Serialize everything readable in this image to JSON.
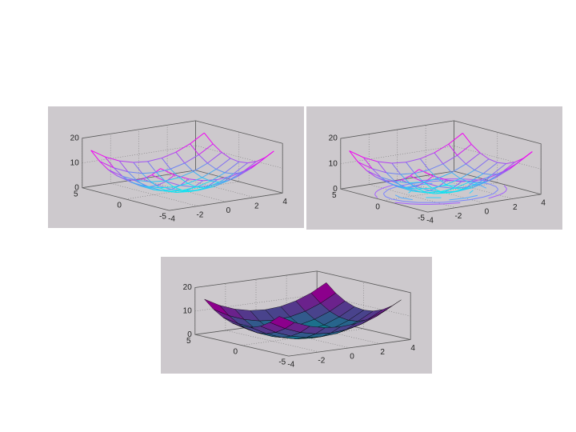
{
  "chart_data": [
    {
      "type": "mesh",
      "view": [
        -37.5,
        30
      ],
      "colormap": [
        "#00ffff",
        "#ff00ff"
      ],
      "x": [
        -4,
        -3,
        -2,
        -1,
        0,
        1,
        2,
        3,
        4
      ],
      "y": [
        -4,
        -3,
        -2,
        -1,
        0,
        1,
        2,
        3,
        4
      ],
      "z": [
        [
          16,
          12.5,
          10,
          8.5,
          8,
          8.5,
          10,
          12.5,
          16
        ],
        [
          12.5,
          9,
          6.5,
          5,
          4.5,
          5,
          6.5,
          9,
          12.5
        ],
        [
          10,
          6.5,
          4,
          2.5,
          2,
          2.5,
          4,
          6.5,
          10
        ],
        [
          8.5,
          5,
          2.5,
          1,
          0.5,
          1,
          2.5,
          5,
          8.5
        ],
        [
          8,
          4.5,
          2,
          0.5,
          0,
          0.5,
          2,
          4.5,
          8
        ],
        [
          8.5,
          5,
          2.5,
          1,
          0.5,
          1,
          2.5,
          5,
          8.5
        ],
        [
          10,
          6.5,
          4,
          2.5,
          2,
          2.5,
          4,
          6.5,
          10
        ],
        [
          12.5,
          9,
          6.5,
          5,
          4.5,
          5,
          6.5,
          9,
          12.5
        ],
        [
          16,
          12.5,
          10,
          8.5,
          8,
          8.5,
          10,
          12.5,
          16
        ]
      ],
      "xlim": [
        -4,
        4
      ],
      "ylim": [
        -5,
        5
      ],
      "zlim": [
        0,
        20
      ],
      "xticks": [
        -4,
        -2,
        0,
        2,
        4
      ],
      "yticks": [
        -5,
        0,
        5
      ],
      "zticks": [
        0,
        10,
        20
      ],
      "grid": true
    },
    {
      "type": "meshc",
      "view": [
        -37.5,
        30
      ],
      "colormap": [
        "#00ffff",
        "#ff00ff"
      ],
      "x": [
        -4,
        -3,
        -2,
        -1,
        0,
        1,
        2,
        3,
        4
      ],
      "y": [
        -4,
        -3,
        -2,
        -1,
        0,
        1,
        2,
        3,
        4
      ],
      "z": [
        [
          16,
          12.5,
          10,
          8.5,
          8,
          8.5,
          10,
          12.5,
          16
        ],
        [
          12.5,
          9,
          6.5,
          5,
          4.5,
          5,
          6.5,
          9,
          12.5
        ],
        [
          10,
          6.5,
          4,
          2.5,
          2,
          2.5,
          4,
          6.5,
          10
        ],
        [
          8.5,
          5,
          2.5,
          1,
          0.5,
          1,
          2.5,
          5,
          8.5
        ],
        [
          8,
          4.5,
          2,
          0.5,
          0,
          0.5,
          2,
          4.5,
          8
        ],
        [
          8.5,
          5,
          2.5,
          1,
          0.5,
          1,
          2.5,
          5,
          8.5
        ],
        [
          10,
          6.5,
          4,
          2.5,
          2,
          2.5,
          4,
          6.5,
          10
        ],
        [
          12.5,
          9,
          6.5,
          5,
          4.5,
          5,
          6.5,
          9,
          12.5
        ],
        [
          16,
          12.5,
          10,
          8.5,
          8,
          8.5,
          10,
          12.5,
          16
        ]
      ],
      "contour_levels": [
        2,
        4,
        6,
        8
      ],
      "xlim": [
        -4,
        4
      ],
      "ylim": [
        -5,
        5
      ],
      "zlim": [
        0,
        20
      ],
      "xticks": [
        -4,
        -2,
        0,
        2,
        4
      ],
      "yticks": [
        -5,
        0,
        5
      ],
      "zticks": [
        0,
        10,
        20
      ],
      "grid": true
    },
    {
      "type": "surf",
      "view": [
        -37.5,
        30
      ],
      "colormap": [
        "#00ffff",
        "#ff00ff"
      ],
      "edge_color": "#000000",
      "x": [
        -4,
        -3,
        -2,
        -1,
        0,
        1,
        2,
        3,
        4
      ],
      "y": [
        -4,
        -3,
        -2,
        -1,
        0,
        1,
        2,
        3,
        4
      ],
      "z": [
        [
          16,
          12.5,
          10,
          8.5,
          8,
          8.5,
          10,
          12.5,
          16
        ],
        [
          12.5,
          9,
          6.5,
          5,
          4.5,
          5,
          6.5,
          9,
          12.5
        ],
        [
          10,
          6.5,
          4,
          2.5,
          2,
          2.5,
          4,
          6.5,
          10
        ],
        [
          8.5,
          5,
          2.5,
          1,
          0.5,
          1,
          2.5,
          5,
          8.5
        ],
        [
          8,
          4.5,
          2,
          0.5,
          0,
          0.5,
          2,
          4.5,
          8
        ],
        [
          8.5,
          5,
          2.5,
          1,
          0.5,
          1,
          2.5,
          5,
          8.5
        ],
        [
          10,
          6.5,
          4,
          2.5,
          2,
          2.5,
          4,
          6.5,
          10
        ],
        [
          12.5,
          9,
          6.5,
          5,
          4.5,
          5,
          6.5,
          9,
          12.5
        ],
        [
          16,
          12.5,
          10,
          8.5,
          8,
          8.5,
          10,
          12.5,
          16
        ]
      ],
      "xlim": [
        -4,
        4
      ],
      "ylim": [
        -5,
        5
      ],
      "zlim": [
        0,
        20
      ],
      "xticks": [
        -4,
        -2,
        0,
        2,
        4
      ],
      "yticks": [
        -5,
        0,
        5
      ],
      "zticks": [
        0,
        10,
        20
      ],
      "grid": true
    }
  ]
}
